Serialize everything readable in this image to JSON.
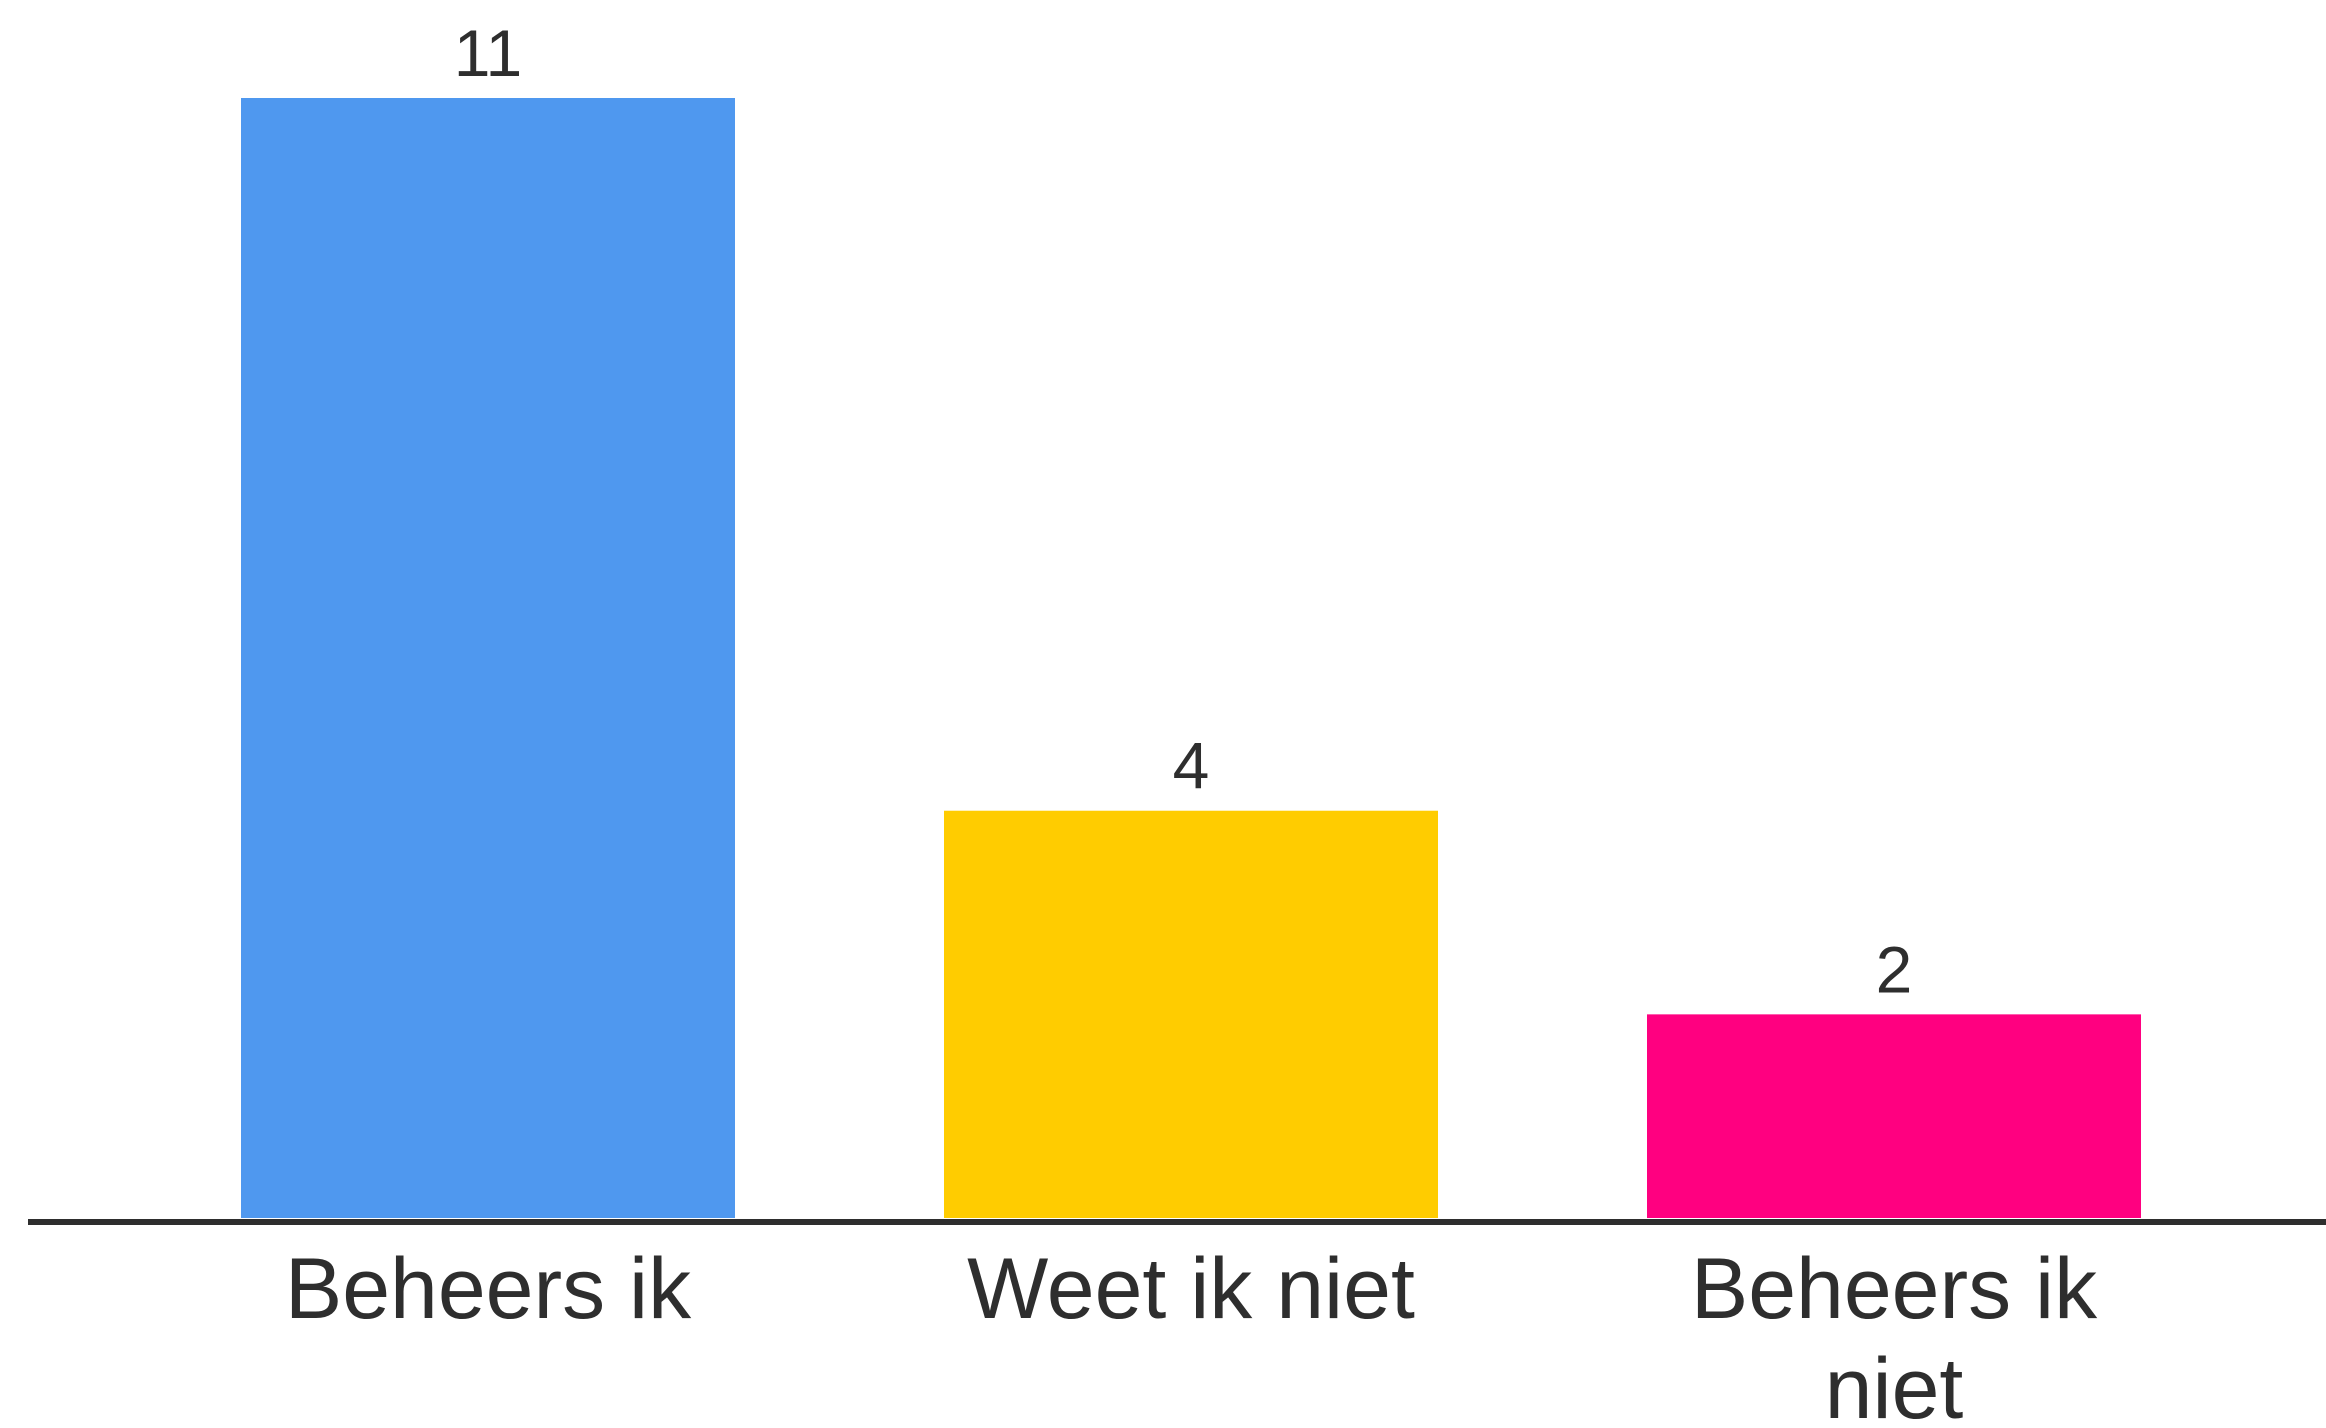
{
  "chart_data": {
    "type": "bar",
    "categories": [
      "Beheers ik",
      "Weet ik niet",
      "Beheers ik niet"
    ],
    "values": [
      11,
      4,
      2
    ],
    "colors": [
      "#4F98EF",
      "#FFCC00",
      "#FF0080"
    ],
    "value_labels": [
      "11",
      "4",
      "2"
    ],
    "category_labels": [
      [
        "Beheers ik"
      ],
      [
        "Weet ik niet"
      ],
      [
        "Beheers ik",
        "niet"
      ]
    ],
    "title": "",
    "xlabel": "",
    "ylabel": "",
    "ylim": [
      0,
      11
    ],
    "grid": false,
    "legend": "none"
  }
}
